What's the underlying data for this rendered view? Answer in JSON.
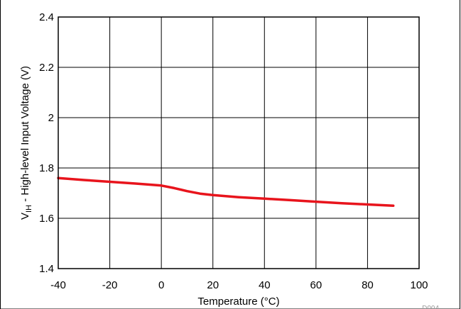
{
  "chart_data": {
    "type": "line",
    "title": "",
    "xlabel": "Temperature (°C)",
    "ylabel_prefix": "V",
    "ylabel_subscript": "IH",
    "ylabel_rest": " - High-level Input Voltage (V)",
    "xlim": [
      -40,
      100
    ],
    "ylim": [
      1.4,
      2.4
    ],
    "x_ticks": [
      -40,
      -20,
      0,
      20,
      40,
      60,
      80,
      100
    ],
    "y_ticks": [
      1.4,
      1.6,
      1.8,
      2,
      2.2,
      2.4
    ],
    "x_tick_labels": [
      "-40",
      "-20",
      "0",
      "20",
      "40",
      "60",
      "80",
      "100"
    ],
    "y_tick_labels": [
      "1.4",
      "1.6",
      "1.8",
      "2",
      "2.2",
      "2.4"
    ],
    "grid": true,
    "figure_id": "D004",
    "series": [
      {
        "color": "#e8141c",
        "x": [
          -40,
          -30,
          -20,
          -10,
          0,
          5,
          10,
          15,
          20,
          30,
          40,
          50,
          60,
          70,
          80,
          90
        ],
        "y": [
          1.76,
          1.752,
          1.745,
          1.738,
          1.73,
          1.72,
          1.708,
          1.698,
          1.692,
          1.684,
          1.678,
          1.672,
          1.666,
          1.66,
          1.655,
          1.65
        ]
      }
    ]
  }
}
